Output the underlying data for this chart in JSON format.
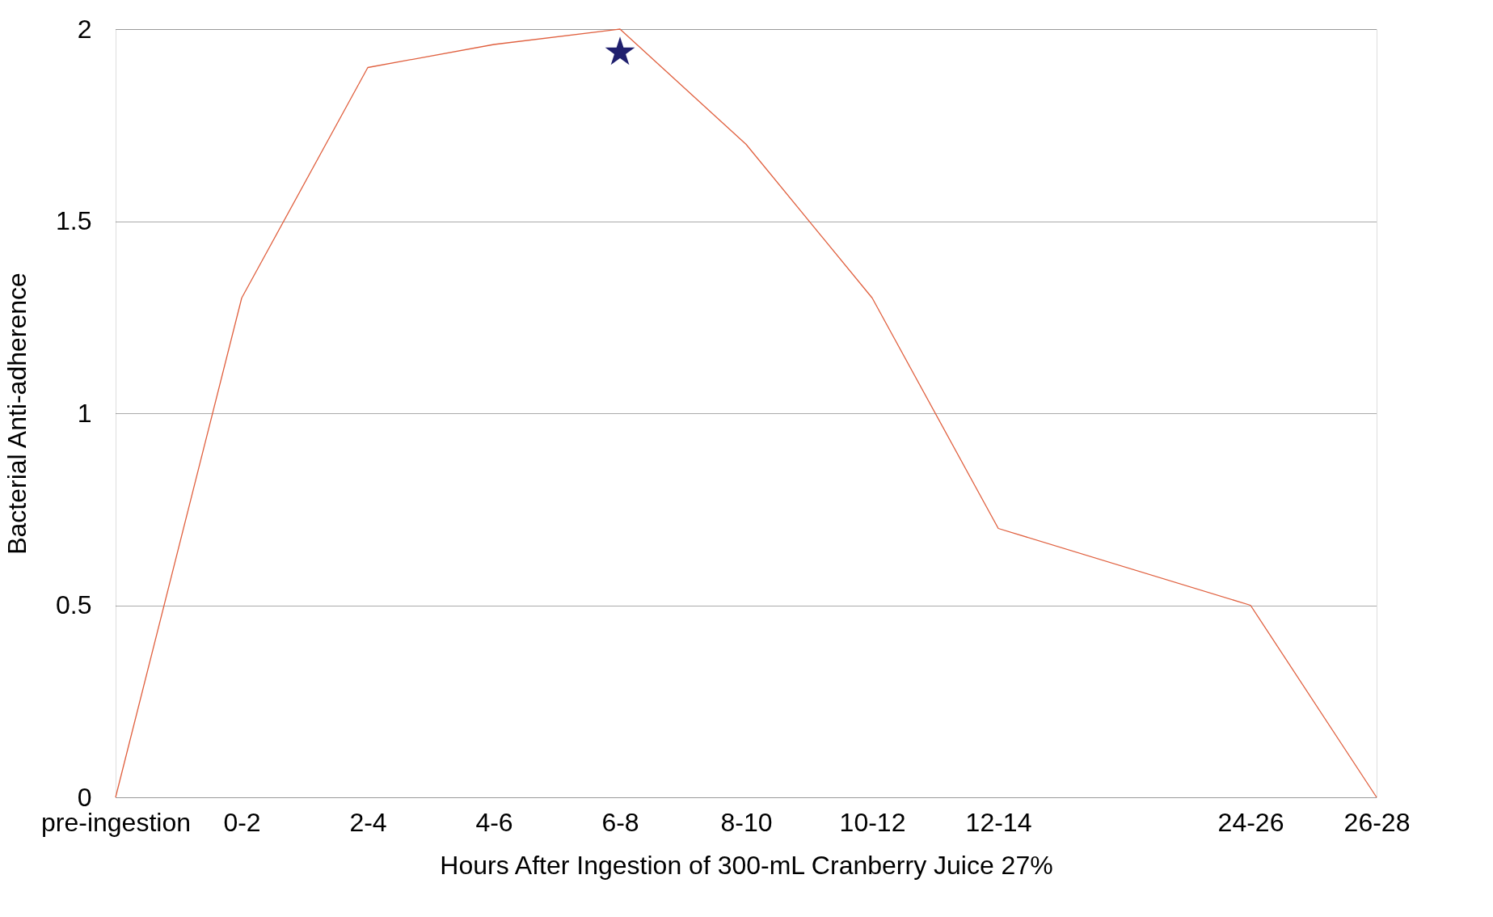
{
  "chart_data": {
    "type": "line",
    "xlabel": "Hours After Ingestion of 300-mL Cranberry Juice 27%",
    "ylabel": "Bacterial Anti-adherence",
    "categories": [
      "pre-ingestion",
      "0-2",
      "2-4",
      "4-6",
      "6-8",
      "8-10",
      "10-12",
      "12-14",
      null,
      "24-26",
      "26-28"
    ],
    "series": [
      {
        "color": "#e0603f",
        "values": [
          0,
          1.3,
          1.9,
          1.96,
          2.0,
          1.7,
          1.3,
          0.7,
          null,
          0.5,
          0
        ]
      }
    ],
    "ylim": [
      0,
      2
    ],
    "yticks": [
      0,
      0.5,
      1,
      1.5,
      2
    ],
    "grid": "y",
    "marker": "none",
    "line_style": "solid",
    "legend": false,
    "annotations": [
      "★"
    ]
  }
}
